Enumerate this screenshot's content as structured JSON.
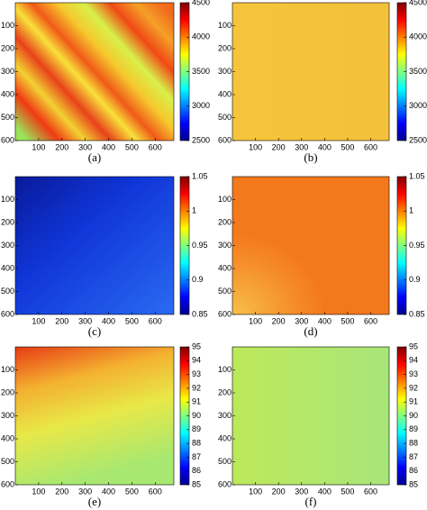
{
  "chart_data": [
    {
      "type": "heatmap",
      "caption": "(a)",
      "colormap": "jet",
      "xlim": [
        0,
        680
      ],
      "xticks": [
        100,
        200,
        300,
        400,
        500,
        600
      ],
      "ylim": [
        600,
        0
      ],
      "yticks": [
        100,
        200,
        300,
        400,
        500,
        600
      ],
      "clim": [
        2500,
        4500
      ],
      "cticks": [
        2500,
        3000,
        3500,
        4000,
        4500
      ]
    },
    {
      "type": "heatmap",
      "caption": "(b)",
      "colormap": "jet",
      "xlim": [
        0,
        680
      ],
      "xticks": [
        100,
        200,
        300,
        400,
        500,
        600
      ],
      "ylim": [
        600,
        0
      ],
      "yticks": [
        100,
        200,
        300,
        400,
        500,
        600
      ],
      "clim": [
        2500,
        4500
      ],
      "cticks": [
        2500,
        3000,
        3500,
        4000,
        4500
      ]
    },
    {
      "type": "heatmap",
      "caption": "(c)",
      "colormap": "jet",
      "xlim": [
        0,
        680
      ],
      "xticks": [
        100,
        200,
        300,
        400,
        500,
        600
      ],
      "ylim": [
        600,
        0
      ],
      "yticks": [
        100,
        200,
        300,
        400,
        500,
        600
      ],
      "clim": [
        0.85,
        1.05
      ],
      "cticks": [
        0.85,
        0.9,
        0.95,
        1,
        1.05
      ]
    },
    {
      "type": "heatmap",
      "caption": "(d)",
      "colormap": "jet",
      "xlim": [
        0,
        680
      ],
      "xticks": [
        100,
        200,
        300,
        400,
        500,
        600
      ],
      "ylim": [
        600,
        0
      ],
      "yticks": [
        100,
        200,
        300,
        400,
        500,
        600
      ],
      "clim": [
        0.85,
        1.05
      ],
      "cticks": [
        0.85,
        0.9,
        0.95,
        1,
        1.05
      ]
    },
    {
      "type": "heatmap",
      "caption": "(e)",
      "colormap": "jet",
      "xlim": [
        0,
        680
      ],
      "xticks": [
        100,
        200,
        300,
        400,
        500,
        600
      ],
      "ylim": [
        600,
        0
      ],
      "yticks": [
        100,
        200,
        300,
        400,
        500,
        600
      ],
      "clim": [
        85,
        95
      ],
      "cticks": [
        85,
        86,
        87,
        88,
        89,
        90,
        91,
        92,
        93,
        94,
        95
      ]
    },
    {
      "type": "heatmap",
      "caption": "(f)",
      "colormap": "jet",
      "xlim": [
        0,
        680
      ],
      "xticks": [
        100,
        200,
        300,
        400,
        500,
        600
      ],
      "ylim": [
        600,
        0
      ],
      "yticks": [
        100,
        200,
        300,
        400,
        500,
        600
      ],
      "clim": [
        85,
        95
      ],
      "cticks": [
        85,
        86,
        87,
        88,
        89,
        90,
        91,
        92,
        93,
        94,
        95
      ]
    }
  ]
}
